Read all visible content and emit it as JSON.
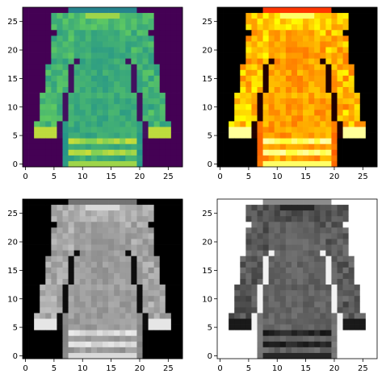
{
  "chart_data": [
    {
      "type": "heatmap",
      "colormap": "viridis",
      "image": "fashion-mnist-pullover-28x28",
      "xlim": [
        -0.5,
        27.5
      ],
      "ylim": [
        27.5,
        -0.5
      ],
      "xticks": [
        0,
        5,
        10,
        15,
        20,
        25
      ],
      "yticks": [
        0,
        5,
        10,
        15,
        20,
        25
      ],
      "xtick_labels": [
        "0",
        "5",
        "10",
        "15",
        "20",
        "25"
      ],
      "ytick_labels": [
        "0",
        "5",
        "10",
        "15",
        "20",
        "25"
      ]
    },
    {
      "type": "heatmap",
      "colormap": "hot",
      "image": "fashion-mnist-pullover-28x28",
      "xlim": [
        -0.5,
        27.5
      ],
      "ylim": [
        27.5,
        -0.5
      ],
      "xticks": [
        0,
        5,
        10,
        15,
        20,
        25
      ],
      "yticks": [
        0,
        5,
        10,
        15,
        20,
        25
      ],
      "xtick_labels": [
        "0",
        "5",
        "10",
        "15",
        "20",
        "25"
      ],
      "ytick_labels": [
        "0",
        "5",
        "10",
        "15",
        "20",
        "25"
      ]
    },
    {
      "type": "heatmap",
      "colormap": "gray",
      "image": "fashion-mnist-pullover-28x28",
      "xlim": [
        -0.5,
        27.5
      ],
      "ylim": [
        27.5,
        -0.5
      ],
      "xticks": [
        0,
        5,
        10,
        15,
        20,
        25
      ],
      "yticks": [
        0,
        5,
        10,
        15,
        20,
        25
      ],
      "xtick_labels": [
        "0",
        "5",
        "10",
        "15",
        "20",
        "25"
      ],
      "ytick_labels": [
        "0",
        "5",
        "10",
        "15",
        "20",
        "25"
      ]
    },
    {
      "type": "heatmap",
      "colormap": "gray_r",
      "image": "fashion-mnist-pullover-28x28",
      "xlim": [
        -0.5,
        27.5
      ],
      "ylim": [
        27.5,
        -0.5
      ],
      "xticks": [
        0,
        5,
        10,
        15,
        20,
        25
      ],
      "yticks": [
        0,
        5,
        10,
        15,
        20,
        25
      ],
      "xtick_labels": [
        "0",
        "5",
        "10",
        "15",
        "20",
        "25"
      ],
      "ytick_labels": [
        "0",
        "5",
        "10",
        "15",
        "20",
        "25"
      ]
    }
  ]
}
